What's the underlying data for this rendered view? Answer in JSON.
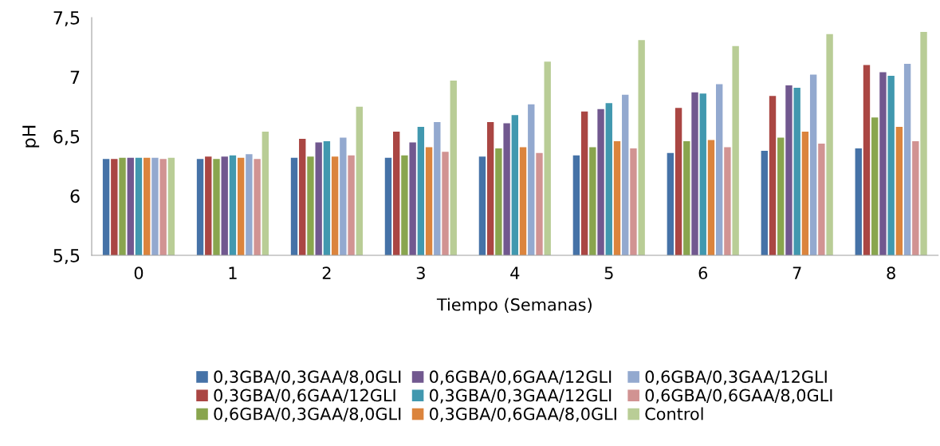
{
  "chart_data": {
    "type": "bar",
    "xlabel": "Tiempo (Semanas)",
    "ylabel": "pH",
    "categories": [
      "0",
      "1",
      "2",
      "3",
      "4",
      "5",
      "6",
      "7",
      "8"
    ],
    "ylim": [
      5.5,
      7.5
    ],
    "yticks": [
      {
        "value": 5.5,
        "label": "5,5"
      },
      {
        "value": 6,
        "label": "6"
      },
      {
        "value": 6.5,
        "label": "6,5"
      },
      {
        "value": 7,
        "label": "7"
      },
      {
        "value": 7.5,
        "label": "7,5"
      }
    ],
    "grid": false,
    "legend": "bottom",
    "series": [
      {
        "name": "0,3GBA/0,3GAA/8,0GLI",
        "color": "#4572a7",
        "values": [
          6.31,
          6.31,
          6.32,
          6.32,
          6.33,
          6.34,
          6.36,
          6.38,
          6.4
        ]
      },
      {
        "name": "0,3GBA/0,6GAA/12GLI",
        "color": "#aa4643",
        "values": [
          6.31,
          6.33,
          6.48,
          6.54,
          6.62,
          6.71,
          6.74,
          6.84,
          7.1
        ]
      },
      {
        "name": "0,6GBA/0,3GAA/8,0GLI",
        "color": "#89a54e",
        "values": [
          6.32,
          6.31,
          6.33,
          6.34,
          6.4,
          6.41,
          6.46,
          6.49,
          6.66
        ]
      },
      {
        "name": "0,6GBA/0,6GAA/12GLI",
        "color": "#71588f",
        "values": [
          6.32,
          6.33,
          6.45,
          6.45,
          6.61,
          6.73,
          6.87,
          6.93,
          7.04
        ]
      },
      {
        "name": "0,3GBA/0,3GAA/12GLI",
        "color": "#4198af",
        "values": [
          6.32,
          6.34,
          6.46,
          6.58,
          6.68,
          6.78,
          6.86,
          6.91,
          7.01
        ]
      },
      {
        "name": "0,3GBA/0,6GAA/8,0GLI",
        "color": "#db843d",
        "values": [
          6.32,
          6.32,
          6.33,
          6.41,
          6.41,
          6.46,
          6.47,
          6.54,
          6.58
        ]
      },
      {
        "name": "0,6GBA/0,3GAA/12GLI",
        "color": "#93a9cf",
        "values": [
          6.32,
          6.35,
          6.49,
          6.62,
          6.77,
          6.85,
          6.94,
          7.02,
          7.11
        ]
      },
      {
        "name": "0,6GBA/0,6GAA/8,0GLI",
        "color": "#d19392",
        "values": [
          6.31,
          6.31,
          6.34,
          6.37,
          6.36,
          6.4,
          6.41,
          6.44,
          6.46
        ]
      },
      {
        "name": "Control",
        "color": "#b9cd96",
        "values": [
          6.32,
          6.54,
          6.75,
          6.97,
          7.13,
          7.31,
          7.26,
          7.36,
          7.38
        ]
      }
    ]
  }
}
